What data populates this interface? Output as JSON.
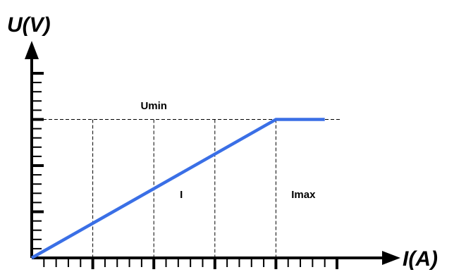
{
  "chart_data": {
    "type": "line",
    "ylabel": "U(V)",
    "xlabel": "I(A)",
    "xlim": [
      0,
      5
    ],
    "ylim": [
      0,
      4
    ],
    "x_ticks_major": [
      0,
      1,
      2,
      3,
      4,
      5
    ],
    "x_minor_per_major": 5,
    "y_ticks_major": [
      0,
      1,
      2,
      3,
      4
    ],
    "y_minor_per_major": 5,
    "grid_x": [
      1,
      2,
      3,
      4
    ],
    "reference_y": 3,
    "series": [
      {
        "color": "#3a6fe6",
        "points": [
          [
            0,
            0
          ],
          [
            4,
            3
          ],
          [
            4.8,
            3
          ]
        ]
      }
    ],
    "annotations": [
      {
        "text": "Umin",
        "x": 2.0,
        "y": 3.22
      },
      {
        "text": "I",
        "x": 2.45,
        "y": 1.3
      },
      {
        "text": "Imax",
        "x": 4.45,
        "y": 1.3
      }
    ]
  }
}
